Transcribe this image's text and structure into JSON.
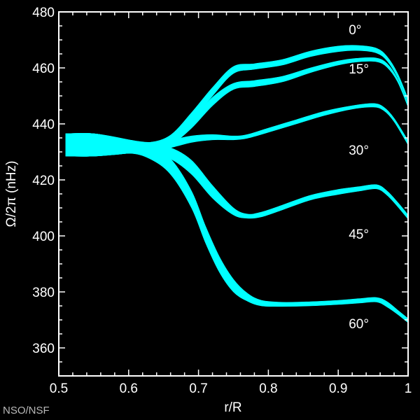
{
  "credit": "NSO/NSF",
  "chart_data": {
    "type": "area",
    "title": "",
    "xlabel": "r/R",
    "ylabel": "Ω/2π (nHz)",
    "xlim": [
      0.5,
      1.0
    ],
    "ylim": [
      350,
      480
    ],
    "x_ticks": [
      0.5,
      0.6,
      0.7,
      0.8,
      0.9,
      1.0
    ],
    "x_tick_labels": [
      "0.5",
      "0.6",
      "0.7",
      "0.8",
      "0.9",
      "1"
    ],
    "y_ticks": [
      360,
      380,
      400,
      420,
      440,
      460,
      480
    ],
    "y_tick_labels": [
      "360",
      "380",
      "400",
      "420",
      "440",
      "460",
      "480"
    ],
    "grid": false,
    "band_color": "#00ffff",
    "background": "#000000",
    "foreground": "#ffffff",
    "series": [
      {
        "name": "0°",
        "label_at": [
          0.915,
          472
        ],
        "x": [
          0.51,
          0.55,
          0.6,
          0.63,
          0.66,
          0.69,
          0.72,
          0.75,
          0.78,
          0.82,
          0.86,
          0.9,
          0.93,
          0.955,
          0.97,
          0.985,
          1.0
        ],
        "upper": [
          436.5,
          436.5,
          434.3,
          433.4,
          436,
          444,
          453,
          460.5,
          461.5,
          463,
          466,
          467.8,
          468,
          467,
          464,
          458,
          449
        ],
        "lower": [
          428.5,
          428.5,
          429.5,
          430.2,
          433,
          441,
          450,
          458,
          459.5,
          461,
          464,
          465.8,
          466.2,
          465.3,
          462.5,
          456.5,
          447.5
        ]
      },
      {
        "name": "15°",
        "label_at": [
          0.915,
          458
        ],
        "x": [
          0.51,
          0.55,
          0.6,
          0.63,
          0.66,
          0.69,
          0.72,
          0.75,
          0.78,
          0.82,
          0.86,
          0.9,
          0.93,
          0.955,
          0.97,
          0.985,
          1.0
        ],
        "upper": [
          436.5,
          436.5,
          434.3,
          433.4,
          435.5,
          441.5,
          449.5,
          454.5,
          455.5,
          457,
          460,
          462.5,
          463.5,
          463.5,
          461.5,
          456,
          447
        ],
        "lower": [
          428.5,
          428.5,
          429.5,
          430.2,
          432.5,
          438.5,
          446.5,
          452.3,
          453.3,
          455,
          458.3,
          461,
          462.2,
          462.2,
          460.2,
          455,
          446
        ]
      },
      {
        "name": "30°",
        "label_at": [
          0.915,
          429
        ],
        "x": [
          0.51,
          0.55,
          0.6,
          0.63,
          0.66,
          0.69,
          0.72,
          0.75,
          0.77,
          0.8,
          0.84,
          0.88,
          0.92,
          0.95,
          0.965,
          0.98,
          1.0
        ],
        "upper": [
          436.5,
          436.5,
          434.3,
          433.4,
          434.2,
          435.7,
          436.2,
          435.7,
          436.2,
          438.5,
          441.5,
          444.5,
          446.5,
          447.3,
          446,
          442,
          434
        ],
        "lower": [
          428.5,
          428.5,
          429.5,
          430.2,
          431.5,
          433.4,
          434.3,
          434.3,
          434.9,
          437,
          440,
          443,
          445.3,
          446,
          444.8,
          440.8,
          432.5
        ]
      },
      {
        "name": "45°",
        "label_at": [
          0.915,
          399
        ],
        "x": [
          0.51,
          0.55,
          0.6,
          0.63,
          0.66,
          0.69,
          0.72,
          0.75,
          0.77,
          0.79,
          0.82,
          0.86,
          0.9,
          0.93,
          0.955,
          0.97,
          0.985,
          1.0
        ],
        "upper": [
          436.5,
          436.5,
          434.3,
          432.8,
          431.5,
          427,
          418,
          410,
          407.8,
          408.5,
          411,
          414.5,
          416.6,
          417.6,
          418.3,
          416,
          412,
          407.5
        ],
        "lower": [
          428.5,
          428.5,
          429.5,
          429.6,
          427.5,
          422,
          413.5,
          407.5,
          406.3,
          406.8,
          409.3,
          412.8,
          414.8,
          416,
          416.8,
          414.5,
          410.5,
          406
        ]
      },
      {
        "name": "60°",
        "label_at": [
          0.915,
          367
        ],
        "x": [
          0.51,
          0.55,
          0.6,
          0.63,
          0.66,
          0.69,
          0.71,
          0.73,
          0.75,
          0.77,
          0.79,
          0.82,
          0.86,
          0.9,
          0.93,
          0.955,
          0.97,
          0.985,
          1.0
        ],
        "upper": [
          436.5,
          436.5,
          434.3,
          432,
          427.5,
          416,
          403.5,
          392.5,
          384.5,
          379.5,
          377,
          376.3,
          376.5,
          377,
          377.6,
          378,
          376.5,
          373.5,
          370.5
        ],
        "lower": [
          428.5,
          428.5,
          429.5,
          427.6,
          422,
          410,
          397.5,
          387,
          380,
          376.7,
          375,
          374.8,
          375,
          375.5,
          376,
          376.4,
          374.6,
          372,
          369
        ]
      }
    ]
  }
}
